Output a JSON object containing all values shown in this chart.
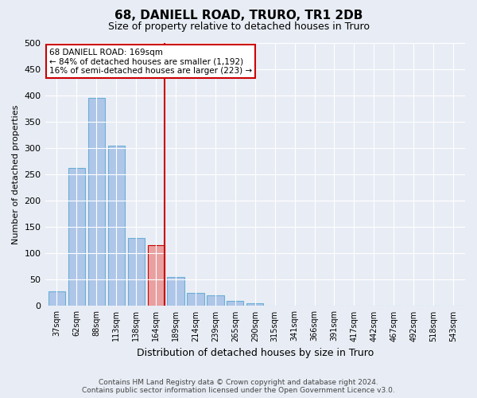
{
  "title": "68, DANIELL ROAD, TRURO, TR1 2DB",
  "subtitle": "Size of property relative to detached houses in Truro",
  "xlabel": "Distribution of detached houses by size in Truro",
  "ylabel": "Number of detached properties",
  "footer_line1": "Contains HM Land Registry data © Crown copyright and database right 2024.",
  "footer_line2": "Contains public sector information licensed under the Open Government Licence v3.0.",
  "annotation_line1": "68 DANIELL ROAD: 169sqm",
  "annotation_line2": "← 84% of detached houses are smaller (1,192)",
  "annotation_line3": "16% of semi-detached houses are larger (223) →",
  "bar_labels": [
    "37sqm",
    "62sqm",
    "88sqm",
    "113sqm",
    "138sqm",
    "164sqm",
    "189sqm",
    "214sqm",
    "239sqm",
    "265sqm",
    "290sqm",
    "315sqm",
    "341sqm",
    "366sqm",
    "391sqm",
    "417sqm",
    "442sqm",
    "467sqm",
    "492sqm",
    "518sqm",
    "543sqm"
  ],
  "bar_values": [
    28,
    263,
    395,
    305,
    130,
    115,
    55,
    25,
    20,
    10,
    5,
    1,
    0,
    0,
    0,
    0,
    1,
    0,
    0,
    0,
    1
  ],
  "bar_color": "#aec6e8",
  "bar_edge_color": "#6baed6",
  "highlight_bar_idx": 5,
  "highlight_bar_color": "#e8a0a0",
  "highlight_bar_edge_color": "#cc0000",
  "vline_color": "#cc0000",
  "ylim": [
    0,
    500
  ],
  "yticks": [
    0,
    50,
    100,
    150,
    200,
    250,
    300,
    350,
    400,
    450,
    500
  ],
  "bg_color": "#e8edf5",
  "plot_bg_color": "#e8edf5",
  "annotation_box_color": "#ffffff",
  "annotation_box_edge": "#cc0000",
  "grid_color": "#ffffff",
  "title_fontsize": 11,
  "subtitle_fontsize": 9,
  "ylabel_fontsize": 8,
  "xlabel_fontsize": 9,
  "tick_fontsize": 7,
  "ytick_fontsize": 8,
  "annotation_fontsize": 7.5,
  "footer_fontsize": 6.5
}
